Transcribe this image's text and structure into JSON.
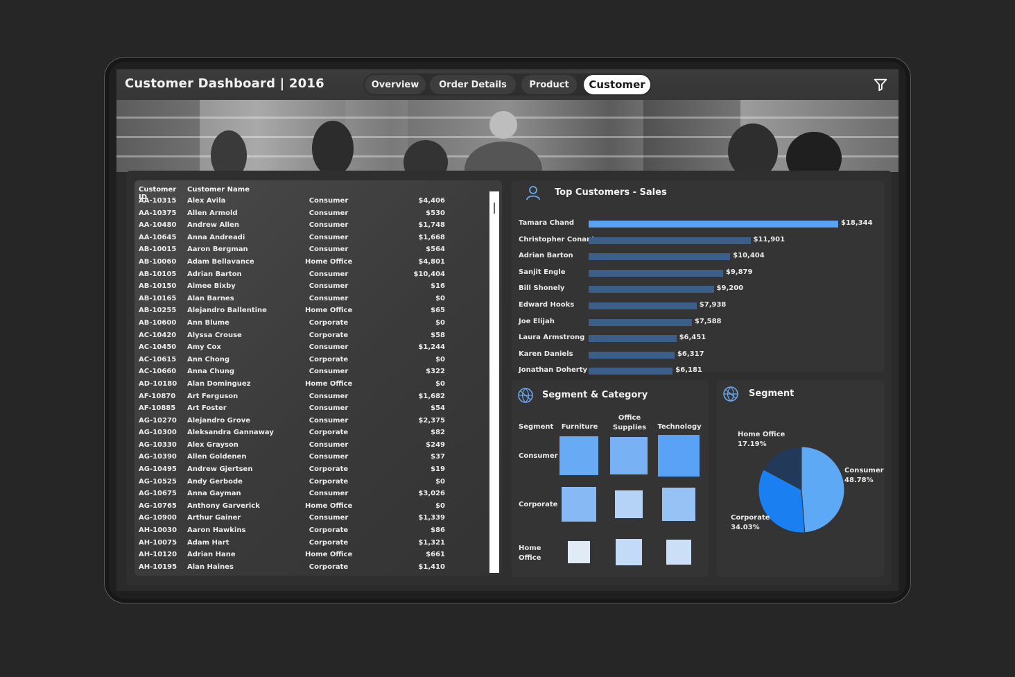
{
  "header": {
    "title": "Customer Dashboard | 2016",
    "tabs": [
      {
        "label": "Overview",
        "active": false
      },
      {
        "label": "Order Details",
        "active": false
      },
      {
        "label": "Product",
        "active": false
      },
      {
        "label": "Customer",
        "active": true
      }
    ],
    "filter_icon": "filter-icon"
  },
  "customer_table": {
    "columns": [
      "Customer ID",
      "Customer Name"
    ],
    "rows": [
      [
        "AA-10315",
        "Alex Avila",
        "Consumer",
        "$4,406"
      ],
      [
        "AA-10375",
        "Allen Armold",
        "Consumer",
        "$530"
      ],
      [
        "AA-10480",
        "Andrew Allen",
        "Consumer",
        "$1,748"
      ],
      [
        "AA-10645",
        "Anna Andreadi",
        "Consumer",
        "$1,668"
      ],
      [
        "AB-10015",
        "Aaron Bergman",
        "Consumer",
        "$564"
      ],
      [
        "AB-10060",
        "Adam Bellavance",
        "Home Office",
        "$4,801"
      ],
      [
        "AB-10105",
        "Adrian Barton",
        "Consumer",
        "$10,404"
      ],
      [
        "AB-10150",
        "Aimee Bixby",
        "Consumer",
        "$16"
      ],
      [
        "AB-10165",
        "Alan Barnes",
        "Consumer",
        "$0"
      ],
      [
        "AB-10255",
        "Alejandro Ballentine",
        "Home Office",
        "$65"
      ],
      [
        "AB-10600",
        "Ann Blume",
        "Corporate",
        "$0"
      ],
      [
        "AC-10420",
        "Alyssa Crouse",
        "Corporate",
        "$58"
      ],
      [
        "AC-10450",
        "Amy Cox",
        "Consumer",
        "$1,244"
      ],
      [
        "AC-10615",
        "Ann Chong",
        "Corporate",
        "$0"
      ],
      [
        "AC-10660",
        "Anna Chung",
        "Consumer",
        "$322"
      ],
      [
        "AD-10180",
        "Alan Dominguez",
        "Home Office",
        "$0"
      ],
      [
        "AF-10870",
        "Art Ferguson",
        "Consumer",
        "$1,682"
      ],
      [
        "AF-10885",
        "Art Foster",
        "Consumer",
        "$54"
      ],
      [
        "AG-10270",
        "Alejandro Grove",
        "Consumer",
        "$2,375"
      ],
      [
        "AG-10300",
        "Aleksandra Gannaway",
        "Corporate",
        "$82"
      ],
      [
        "AG-10330",
        "Alex Grayson",
        "Consumer",
        "$249"
      ],
      [
        "AG-10390",
        "Allen Goldenen",
        "Consumer",
        "$37"
      ],
      [
        "AG-10495",
        "Andrew Gjertsen",
        "Corporate",
        "$19"
      ],
      [
        "AG-10525",
        "Andy Gerbode",
        "Corporate",
        "$0"
      ],
      [
        "AG-10675",
        "Anna Gayman",
        "Consumer",
        "$3,026"
      ],
      [
        "AG-10765",
        "Anthony Garverick",
        "Home Office",
        "$0"
      ],
      [
        "AG-10900",
        "Arthur Gainer",
        "Consumer",
        "$1,339"
      ],
      [
        "AH-10030",
        "Aaron Hawkins",
        "Corporate",
        "$86"
      ],
      [
        "AH-10075",
        "Adam Hart",
        "Corporate",
        "$1,321"
      ],
      [
        "AH-10120",
        "Adrian Hane",
        "Home Office",
        "$661"
      ],
      [
        "AH-10195",
        "Alan Haines",
        "Corporate",
        "$1,410"
      ]
    ]
  },
  "top_customers": {
    "title": "Top Customers - Sales",
    "icon": "user-icon"
  },
  "segment_category": {
    "title": "Segment & Category",
    "icon": "globe-icon",
    "corner_label": "Segment",
    "columns": [
      "Furniture",
      "Office\nSupplies",
      "Technology"
    ],
    "rows": [
      "Consumer",
      "Corporate",
      "Home\nOffice"
    ]
  },
  "segment": {
    "title": "Segment",
    "icon": "globe-icon"
  },
  "colors": {
    "bar_top": "#5aa2f5",
    "bar": "#3c5f8a",
    "pie_consumer": "#5ea9f5",
    "pie_corporate": "#1a7ff0",
    "pie_home_office": "#22395a"
  },
  "chart_data": [
    {
      "type": "bar",
      "orientation": "horizontal",
      "title": "Top Customers - Sales",
      "categories": [
        "Tamara Chand",
        "Christopher Conant",
        "Adrian Barton",
        "Sanjit Engle",
        "Bill Shonely",
        "Edward Hooks",
        "Joe Elijah",
        "Laura Armstrong",
        "Karen Daniels",
        "Jonathan Doherty"
      ],
      "values": [
        18344,
        11901,
        10404,
        9879,
        9200,
        7938,
        7588,
        6451,
        6317,
        6181
      ],
      "labels": [
        "$18,344",
        "$11,901",
        "$10,404",
        "$9,879",
        "$9,200",
        "$7,938",
        "$7,588",
        "$6,451",
        "$6,317",
        "$6,181"
      ],
      "xlim": [
        0,
        18344
      ]
    },
    {
      "type": "heatmap",
      "title": "Segment & Category",
      "x": [
        "Furniture",
        "Office Supplies",
        "Technology"
      ],
      "y": [
        "Consumer",
        "Corporate",
        "Home Office"
      ],
      "values": [
        [
          0.9,
          0.8,
          1.0
        ],
        [
          0.7,
          0.4,
          0.6
        ],
        [
          0.1,
          0.3,
          0.25
        ]
      ]
    },
    {
      "type": "pie",
      "title": "Segment",
      "categories": [
        "Consumer",
        "Corporate",
        "Home Office"
      ],
      "values": [
        48.78,
        34.03,
        17.19
      ],
      "labels": [
        "48.78%",
        "34.03%",
        "17.19%"
      ]
    }
  ]
}
